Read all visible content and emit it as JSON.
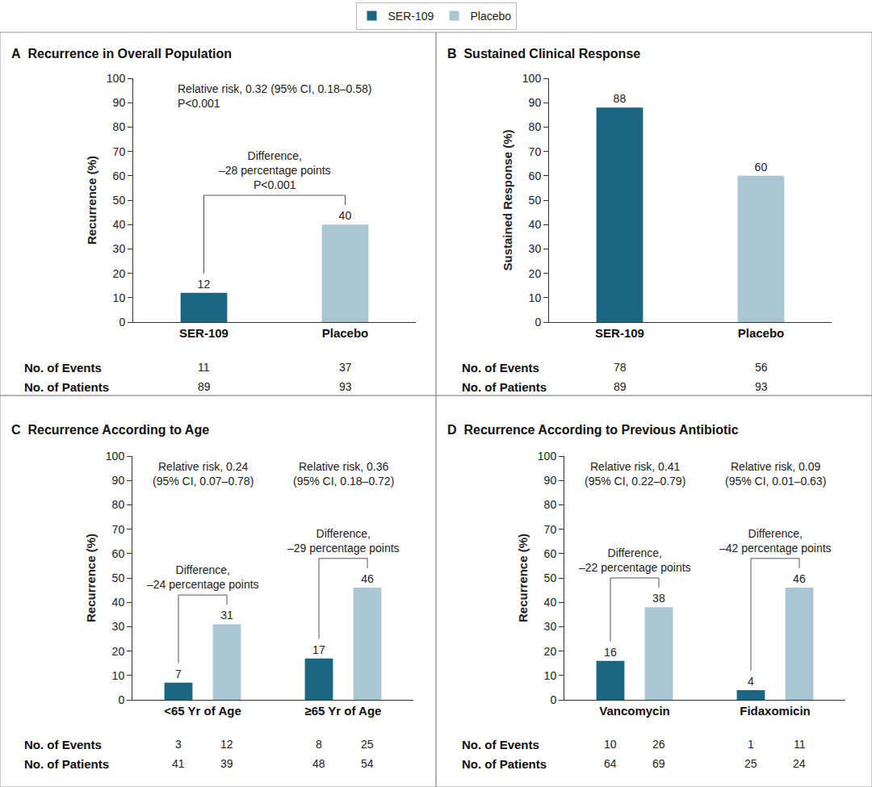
{
  "chart_data": [
    {
      "type": "bar",
      "label": "A",
      "title": "Recurrence in Overall Population",
      "ylabel": "Recurrence (%)",
      "categories": [
        "SER-109",
        "Placebo"
      ],
      "series": [
        {
          "name": "SER-109",
          "color": "#1b6680",
          "values": [
            12,
            null
          ],
          "events": [
            11,
            null
          ],
          "patients": [
            89,
            null
          ]
        },
        {
          "name": "Placebo",
          "color": "#aac6d2",
          "values": [
            null,
            40
          ],
          "events": [
            null,
            37
          ],
          "patients": [
            null,
            93
          ]
        }
      ],
      "row_labels": {
        "events": "No. of Events",
        "patients": "No. of Patients"
      },
      "comparisons": [
        {
          "relative_risk": [
            "Relative risk, 0.32 (95% CI, 0.18–0.58)",
            "P<0.001"
          ],
          "difference": [
            "Difference,",
            "–28 percentage points",
            "P<0.001"
          ]
        }
      ],
      "ylim": [
        0,
        100
      ],
      "yticks": [
        0,
        10,
        20,
        30,
        40,
        50,
        60,
        70,
        80,
        90,
        100
      ],
      "grid": false,
      "data_labels": true,
      "legend": "top"
    },
    {
      "type": "bar",
      "label": "B",
      "title": "Sustained Clinical Response",
      "ylabel": "Sustained Response (%)",
      "categories": [
        "SER-109",
        "Placebo"
      ],
      "series": [
        {
          "name": "SER-109",
          "color": "#1b6680",
          "values": [
            88,
            null
          ],
          "events": [
            78,
            null
          ],
          "patients": [
            89,
            null
          ]
        },
        {
          "name": "Placebo",
          "color": "#aac6d2",
          "values": [
            null,
            60
          ],
          "events": [
            null,
            56
          ],
          "patients": [
            null,
            93
          ]
        }
      ],
      "row_labels": {
        "events": "No. of Events",
        "patients": "No. of Patients"
      },
      "ylim": [
        0,
        100
      ],
      "yticks": [
        0,
        10,
        20,
        30,
        40,
        50,
        60,
        70,
        80,
        90,
        100
      ],
      "grid": false,
      "data_labels": true
    },
    {
      "type": "bar",
      "label": "C",
      "title": "Recurrence According to Age",
      "ylabel": "Recurrence (%)",
      "categories": [
        "<65 Yr of Age",
        "≥65 Yr of Age"
      ],
      "series": [
        {
          "name": "SER-109",
          "color": "#1b6680",
          "values": [
            7,
            17
          ],
          "events": [
            3,
            8
          ],
          "patients": [
            41,
            48
          ]
        },
        {
          "name": "Placebo",
          "color": "#aac6d2",
          "values": [
            31,
            46
          ],
          "events": [
            12,
            25
          ],
          "patients": [
            39,
            54
          ]
        }
      ],
      "row_labels": {
        "events": "No. of Events",
        "patients": "No. of Patients"
      },
      "comparisons": [
        {
          "category": "<65 Yr of Age",
          "relative_risk": [
            "Relative risk, 0.24",
            "(95% CI, 0.07–0.78)"
          ],
          "difference": [
            "Difference,",
            "–24 percentage points"
          ]
        },
        {
          "category": "≥65 Yr of Age",
          "relative_risk": [
            "Relative risk, 0.36",
            "(95% CI, 0.18–0.72)"
          ],
          "difference": [
            "Difference,",
            "–29 percentage points"
          ]
        }
      ],
      "ylim": [
        0,
        100
      ],
      "yticks": [
        0,
        10,
        20,
        30,
        40,
        50,
        60,
        70,
        80,
        90,
        100
      ],
      "grid": false,
      "data_labels": true
    },
    {
      "type": "bar",
      "label": "D",
      "title": "Recurrence According to Previous Antibiotic",
      "ylabel": "Recurrence (%)",
      "categories": [
        "Vancomycin",
        "Fidaxomicin"
      ],
      "series": [
        {
          "name": "SER-109",
          "color": "#1b6680",
          "values": [
            16,
            4
          ],
          "events": [
            10,
            1
          ],
          "patients": [
            64,
            25
          ]
        },
        {
          "name": "Placebo",
          "color": "#aac6d2",
          "values": [
            38,
            46
          ],
          "events": [
            26,
            11
          ],
          "patients": [
            69,
            24
          ]
        }
      ],
      "row_labels": {
        "events": "No. of Events",
        "patients": "No. of Patients"
      },
      "comparisons": [
        {
          "category": "Vancomycin",
          "relative_risk": [
            "Relative risk, 0.41",
            "(95% CI, 0.22–0.79)"
          ],
          "difference": [
            "Difference,",
            "–22 percentage points"
          ]
        },
        {
          "category": "Fidaxomicin",
          "relative_risk": [
            "Relative risk, 0.09",
            "(95% CI, 0.01–0.63)"
          ],
          "difference": [
            "Difference,",
            "–42 percentage points"
          ]
        }
      ],
      "ylim": [
        0,
        100
      ],
      "yticks": [
        0,
        10,
        20,
        30,
        40,
        50,
        60,
        70,
        80,
        90,
        100
      ],
      "grid": false,
      "data_labels": true
    }
  ]
}
